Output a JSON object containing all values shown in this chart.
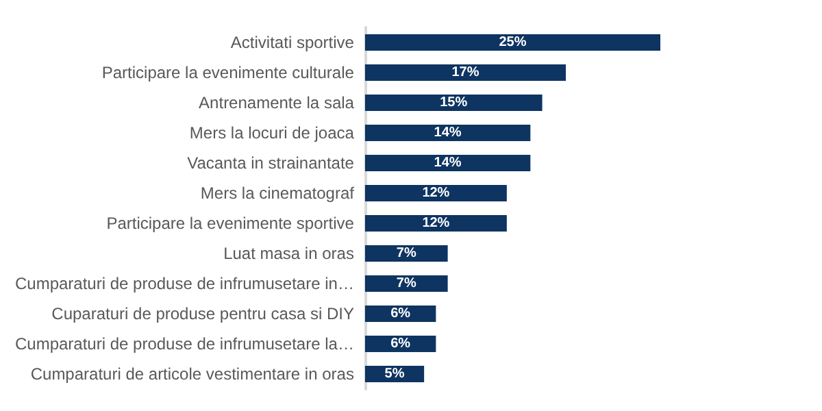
{
  "chart_data": {
    "type": "bar",
    "orientation": "horizontal",
    "categories": [
      "Activitati sportive",
      "Participare la evenimente culturale",
      "Antrenamente la sala",
      "Mers la locuri de joaca",
      "Vacanta in strainantate",
      "Mers la cinematograf",
      "Participare la evenimente sportive",
      "Luat masa in oras",
      "Cumparaturi de produse de infrumusetare in…",
      "Cuparaturi de produse pentru casa si DIY",
      "Cumparaturi de produse de infrumusetare la…",
      "Cumparaturi de articole vestimentare in oras"
    ],
    "values": [
      25,
      17,
      15,
      14,
      14,
      12,
      12,
      7,
      7,
      6,
      6,
      5
    ],
    "value_labels": [
      "25%",
      "17%",
      "15%",
      "14%",
      "14%",
      "12%",
      "12%",
      "7%",
      "7%",
      "6%",
      "6%",
      "5%"
    ],
    "color": "#0e3461"
  }
}
